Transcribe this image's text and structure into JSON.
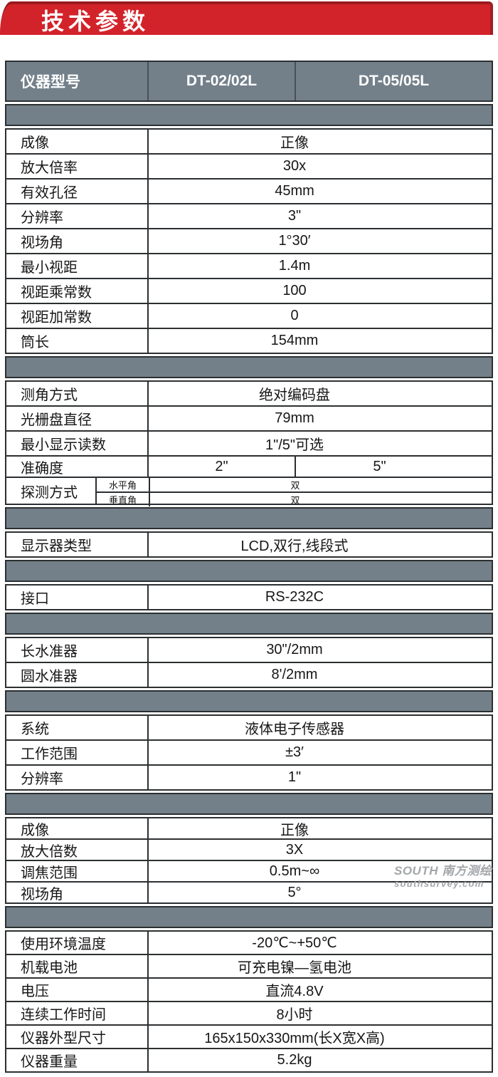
{
  "banner": {
    "title": "技术参数"
  },
  "colors": {
    "ribbon_red": "#d3232a",
    "ribbon_red_dark": "#9b1a1f",
    "header_gray": "#73808a",
    "border_dark": "#2c2f31",
    "text": "#161616",
    "watermark_gray": "#a3a7aa"
  },
  "table_header": {
    "model_label": "仪器型号",
    "model_a": "DT-02/02L",
    "model_b": "DT-05/05L"
  },
  "sections": [
    {
      "rows": [
        {
          "label": "成像",
          "value": "正像"
        },
        {
          "label": "放大倍率",
          "value": "30x"
        },
        {
          "label": "有效孔径",
          "value": "45mm"
        },
        {
          "label": "分辨率",
          "value": "3\""
        },
        {
          "label": "视场角",
          "value": "1°30′"
        },
        {
          "label": "最小视距",
          "value": "1.4m"
        },
        {
          "label": "视距乘常数",
          "value": "100"
        },
        {
          "label": "视距加常数",
          "value": "0"
        },
        {
          "label": "筒长",
          "value": "154mm"
        }
      ]
    },
    {
      "rows": [
        {
          "label": "测角方式",
          "value": "绝对编码盘"
        },
        {
          "label": "光栅盘直径",
          "value": "79mm"
        },
        {
          "label": "最小显示读数",
          "value": "1\"/5\"可选"
        },
        {
          "type": "dual",
          "h": 28,
          "label": "准确度",
          "values": [
            "2\"",
            "5\""
          ]
        },
        {
          "type": "split",
          "h": 36,
          "label": "探测方式",
          "subs": [
            {
              "label": "水平角",
              "value": "双"
            },
            {
              "label": "垂直角",
              "value": "双"
            }
          ]
        }
      ]
    },
    {
      "rows": [
        {
          "label": "显示器类型",
          "value": "LCD,双行,线段式"
        }
      ]
    },
    {
      "rows": [
        {
          "label": "接口",
          "value": "RS-232C"
        }
      ]
    },
    {
      "rows": [
        {
          "label": "长水准器",
          "value": "30\"/2mm"
        },
        {
          "label": "圆水准器",
          "value": "8'/2mm"
        }
      ]
    },
    {
      "rows": [
        {
          "label": "系统",
          "value": "液体电子传感器"
        },
        {
          "label": "工作范围",
          "value": "±3′"
        },
        {
          "label": "分辨率",
          "value": "1\""
        }
      ]
    },
    {
      "rh": 28,
      "rows": [
        {
          "label": "成像",
          "value": "正像"
        },
        {
          "label": "放大倍数",
          "value": "3X"
        },
        {
          "label": "调焦范围",
          "value": "0.5m~∞"
        },
        {
          "label": "视场角",
          "value": "5°"
        }
      ]
    },
    {
      "rh": 31,
      "rows": [
        {
          "label": "使用环境温度",
          "value": "-20℃~+50℃"
        },
        {
          "label": "机载电池",
          "value": "可充电镍—氢电池"
        },
        {
          "label": "电压",
          "value": "直流4.8V"
        },
        {
          "label": "连续工作时间",
          "value": "8小时"
        },
        {
          "label": "仪器外型尺寸",
          "value": "165x150x330mm(长X宽X高)"
        },
        {
          "label": "仪器重量",
          "value": "5.2kg"
        }
      ]
    }
  ],
  "watermark": {
    "brand": "SOUTH 南方测绘",
    "site": "southsurvey.com"
  }
}
